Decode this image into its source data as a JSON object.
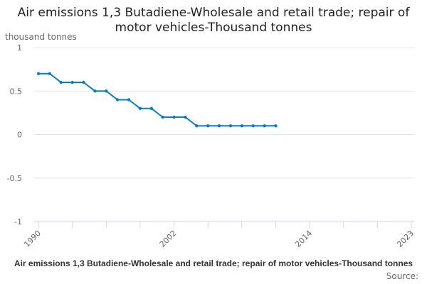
{
  "chart_data": {
    "type": "line",
    "title": "Air emissions 1,3 Butadiene-Wholesale and retail trade; repair of motor vehicles-Thousand tonnes",
    "ylabel": "thousand tonnes",
    "xlabel": "",
    "caption": "Air emissions 1,3 Butadiene-Wholesale and retail trade; repair of motor vehicles-Thousand tonnes",
    "source": "Source:",
    "xlim": [
      1990,
      2023
    ],
    "ylim": [
      -1,
      1
    ],
    "x_ticks": [
      1990,
      2002,
      2014,
      2023
    ],
    "y_ticks": [
      "1",
      "0.5",
      "0",
      "-0.5",
      "-1"
    ],
    "y_tick_values": [
      1,
      0.5,
      0,
      -0.5,
      -1
    ],
    "grid": true,
    "color": "#0a7dc2",
    "series": [
      {
        "x": [
          1990,
          1991,
          1992,
          1993,
          1994,
          1995,
          1996,
          1997,
          1998,
          1999,
          2000,
          2001,
          2002,
          2003,
          2004,
          2005,
          2006,
          2007,
          2008,
          2009,
          2010,
          2011
        ],
        "values": [
          0.7,
          0.7,
          0.6,
          0.6,
          0.6,
          0.5,
          0.5,
          0.4,
          0.4,
          0.3,
          0.3,
          0.2,
          0.2,
          0.2,
          0.1,
          0.1,
          0.1,
          0.1,
          0.1,
          0.1,
          0.1,
          0.1
        ]
      }
    ]
  }
}
